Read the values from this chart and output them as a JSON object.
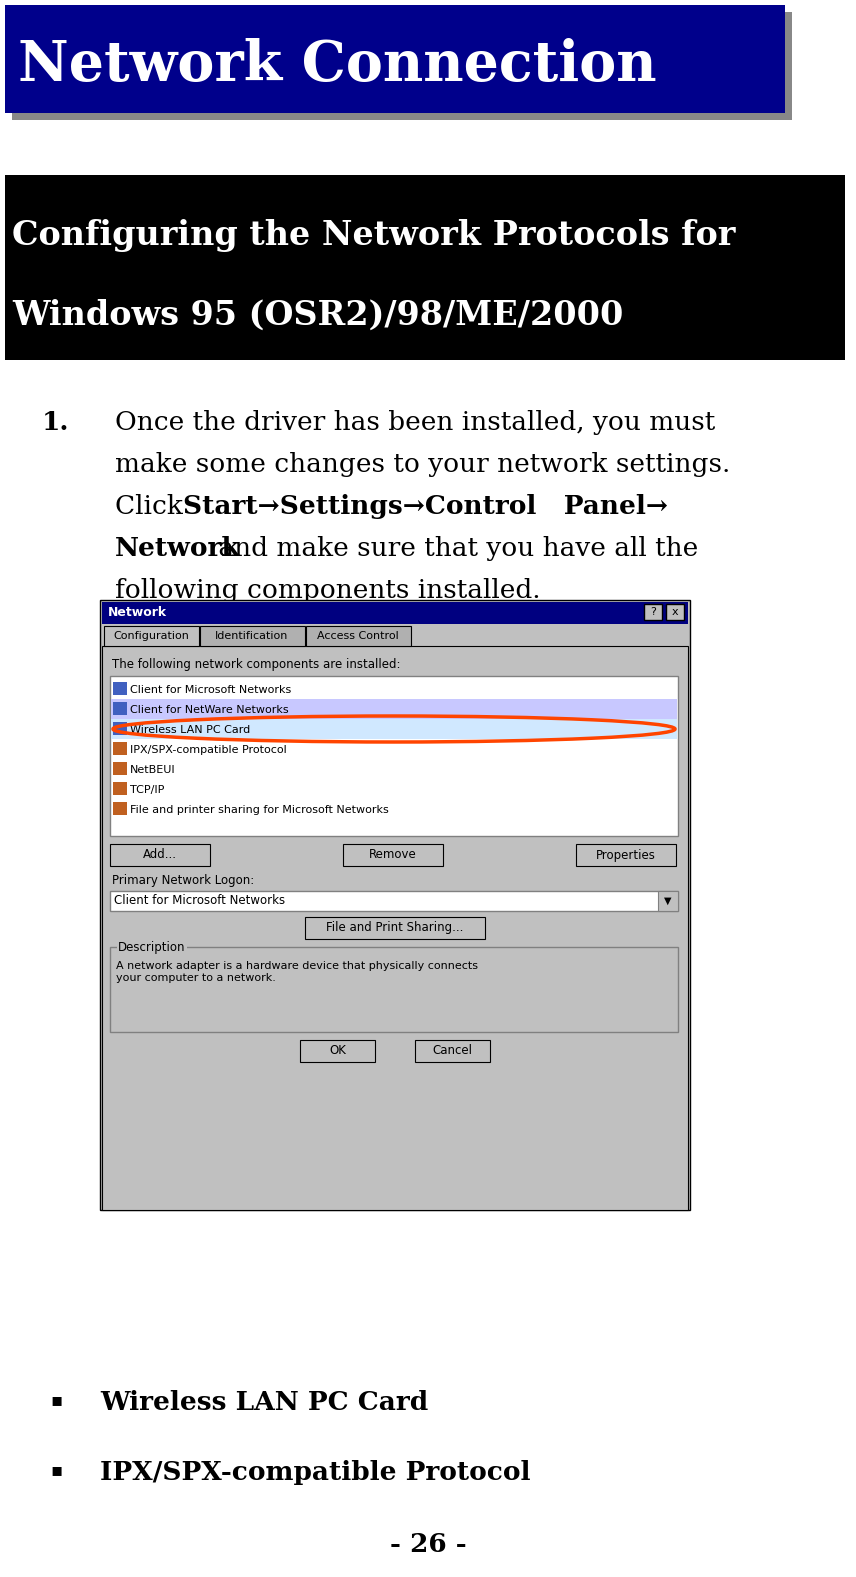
{
  "page_bg": "#ffffff",
  "header_bg": "#00008B",
  "header_text": "Network Connection",
  "header_text_color": "#ffffff",
  "header_shadow_color": "#888888",
  "subheader_bg": "#000000",
  "subheader_line1": "Configuring the Network Protocols for",
  "subheader_line2": "Windows 95 (OSR2)/98/ME/2000",
  "subheader_text_color": "#ffffff",
  "body_text_color": "#000000",
  "bullet1": "Wireless LAN PC Card",
  "bullet2": "IPX/SPX-compatible Protocol",
  "page_number": "- 26 -",
  "screenshot_items": [
    "Client for Microsoft Networks",
    "Client for NetWare Networks",
    "Wireless LAN PC Card",
    "IPX/SPX-compatible Protocol",
    "NetBEUI",
    "TCP/IP",
    "File and printer sharing for Microsoft Networks"
  ],
  "screenshot_title": "Network",
  "screenshot_tabs": [
    "Configuration",
    "Identification",
    "Access Control"
  ],
  "screenshot_label": "The following network components are installed:",
  "screenshot_primary_label": "Primary Network Logon:",
  "screenshot_primary_value": "Client for Microsoft Networks",
  "screenshot_file_print_btn": "File and Print Sharing...",
  "screenshot_desc_title": "Description",
  "screenshot_desc_text": "A network adapter is a hardware device that physically connects\nyour computer to a network.",
  "screenshot_btn_add": "Add...",
  "screenshot_btn_remove": "Remove",
  "screenshot_btn_properties": "Properties",
  "screenshot_btn_ok": "OK",
  "screenshot_btn_cancel": "Cancel"
}
